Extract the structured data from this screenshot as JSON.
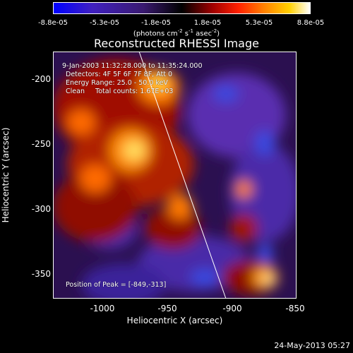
{
  "colorbar": {
    "ticks": [
      "-8.8e-05",
      "-5.3e-05",
      "-1.8e-05",
      "1.8e-05",
      "5.3e-05",
      "8.8e-05"
    ],
    "units_prefix": "(photons cm",
    "units_exp1": "-2",
    "units_mid": " s",
    "units_exp2": "-1",
    "units_mid2": " asec",
    "units_exp3": "-2",
    "units_suffix": ")"
  },
  "title": "Reconstructed RHESSI Image",
  "info": {
    "time_range": "9-Jan-2003 11:32:28.000 to 11:35:24.000",
    "detectors": "Detectors: 4F 5F 6F 7F 8F, Att 0",
    "energy": "Energy Range: 25.0 - 50.0 keV",
    "algorithm": "Clean     Total counts: 1.67E+03",
    "peak": "Position of Peak = [-849,-313]"
  },
  "axes": {
    "xlabel": "Heliocentric X (arcsec)",
    "ylabel": "Heliocentric Y (arcsec)",
    "xticks": [
      "-1000",
      "-950",
      "-900",
      "-850"
    ],
    "yticks": [
      "-200",
      "-250",
      "-300",
      "-350"
    ]
  },
  "footer": "24-May-2013 05:27"
}
